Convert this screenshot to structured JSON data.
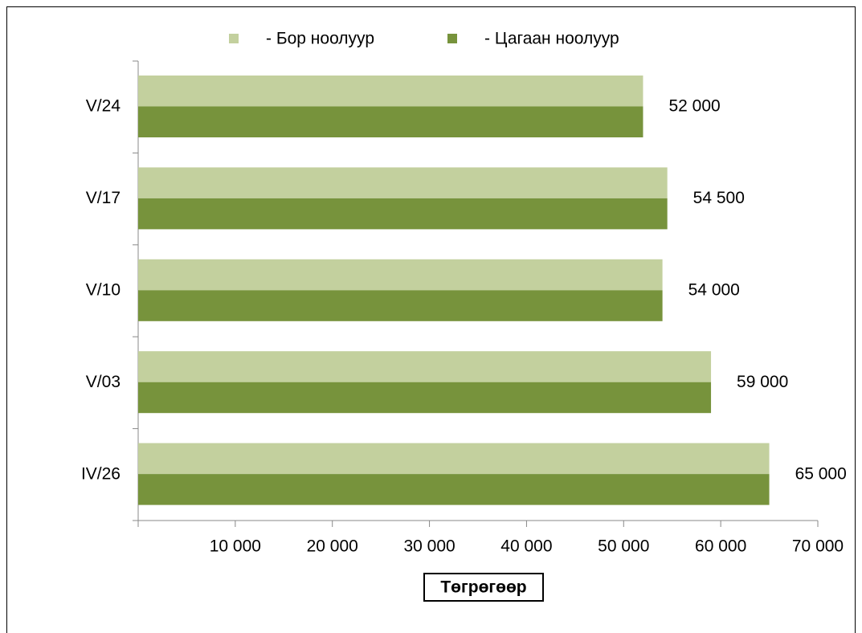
{
  "chart_data": {
    "type": "hbar",
    "categories": [
      "V/24",
      "V/17",
      "V/10",
      "V/03",
      "IV/26"
    ],
    "series": [
      {
        "name": "- Бор ноолуур",
        "color": "#c3d09e",
        "values": [
          52000,
          54500,
          54000,
          59000,
          65000
        ]
      },
      {
        "name": "- Цагаан ноолуур",
        "color": "#77933c",
        "values": [
          52000,
          54500,
          54000,
          59000,
          65000
        ],
        "value_labels": [
          "52 000",
          "54 500",
          "54 000",
          "59 000",
          "65 000"
        ]
      }
    ],
    "x_label": "Төгрөгөөр",
    "xlim": [
      0,
      70000
    ],
    "xticks": [
      {
        "value": 10000,
        "label": "10 000"
      },
      {
        "value": 20000,
        "label": "20 000"
      },
      {
        "value": 30000,
        "label": "30 000"
      },
      {
        "value": 40000,
        "label": "40 000"
      },
      {
        "value": 50000,
        "label": "50 000"
      },
      {
        "value": 60000,
        "label": "60 000"
      },
      {
        "value": 70000,
        "label": "70 000"
      }
    ],
    "legend": "top",
    "grid": false
  }
}
